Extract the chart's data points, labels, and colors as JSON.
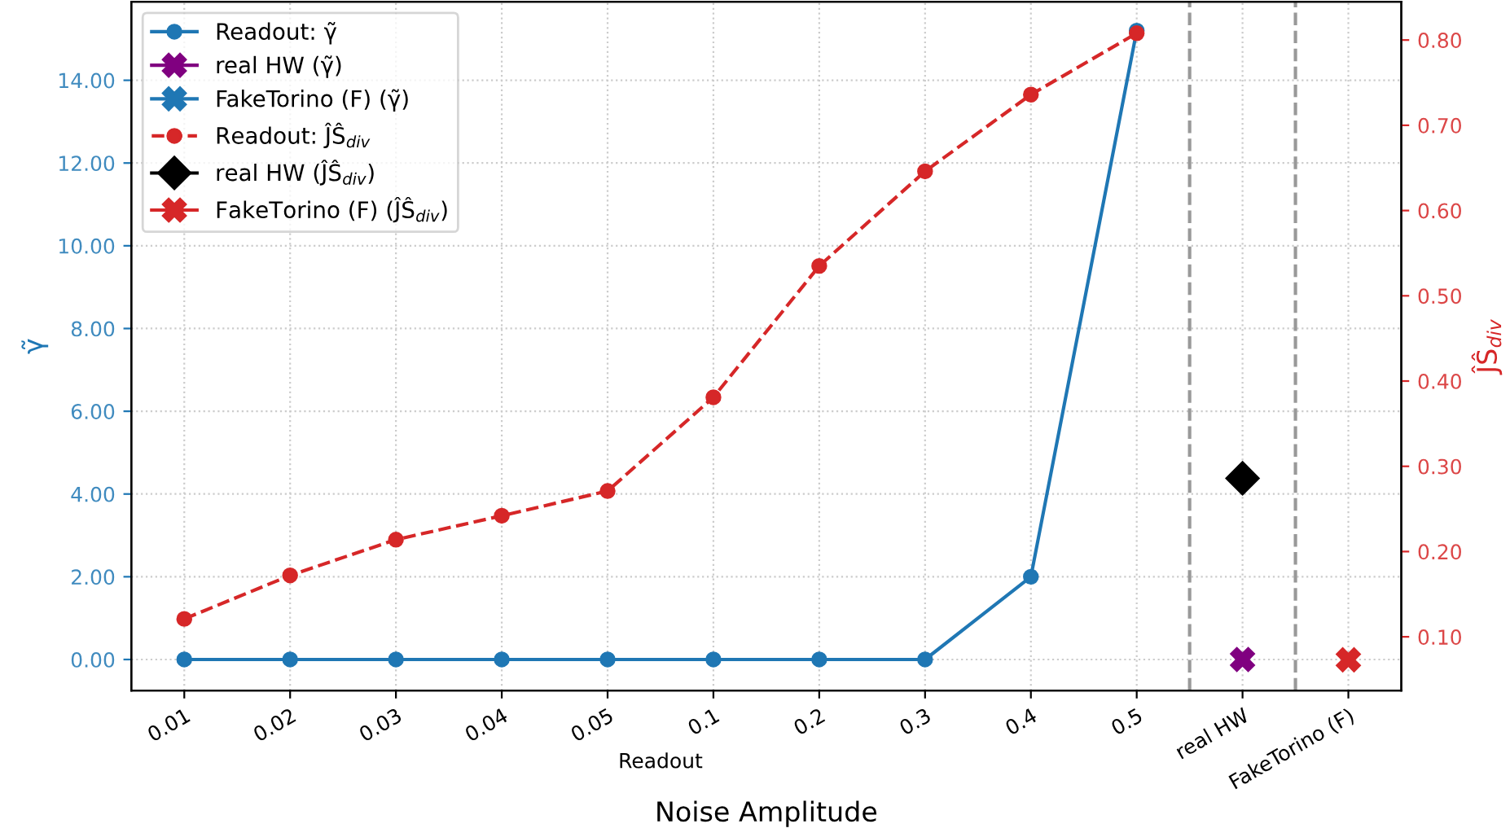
{
  "chart_data": {
    "type": "line",
    "categories": [
      "0.01",
      "0.02",
      "0.03",
      "0.04",
      "0.05",
      "0.1",
      "0.2",
      "0.3",
      "0.4",
      "0.5",
      "real HW",
      "FakeTorino (F)"
    ],
    "xlabel": "Noise Amplitude",
    "ylabel": "γ̃",
    "y2label": "ĴŜ$_{div}$",
    "annotations": [
      "Readout"
    ],
    "ylim": [
      -0.75,
      15.9
    ],
    "yticks": [
      {
        "value": 0,
        "label": "0.00"
      },
      {
        "value": 2,
        "label": "2.00"
      },
      {
        "value": 4,
        "label": "4.00"
      },
      {
        "value": 6,
        "label": "6.00"
      },
      {
        "value": 8,
        "label": "8.00"
      },
      {
        "value": 10,
        "label": "10.00"
      },
      {
        "value": 12,
        "label": "12.00"
      },
      {
        "value": 14,
        "label": "14.00"
      }
    ],
    "y2lim": [
      0.037,
      0.845
    ],
    "y2ticks": [
      {
        "value": 0.1,
        "label": "0.10"
      },
      {
        "value": 0.2,
        "label": "0.20"
      },
      {
        "value": 0.3,
        "label": "0.30"
      },
      {
        "value": 0.4,
        "label": "0.40"
      },
      {
        "value": 0.5,
        "label": "0.50"
      },
      {
        "value": 0.6,
        "label": "0.60"
      },
      {
        "value": 0.7,
        "label": "0.70"
      },
      {
        "value": 0.8,
        "label": "0.80"
      }
    ],
    "grid": true,
    "legend": "top left",
    "series": [
      {
        "name": "Readout: γ̃",
        "color": "#1f77b4",
        "marker": "circle",
        "line_style": "solid",
        "values": [
          0,
          0,
          0,
          0,
          0,
          0,
          0,
          0,
          2.0,
          15.2,
          null,
          null
        ]
      },
      {
        "name": "real HW (γ̃)",
        "type": "scatter",
        "color": "#800080",
        "marker": "cross",
        "values": [
          null,
          null,
          null,
          null,
          null,
          null,
          null,
          null,
          null,
          null,
          0,
          null
        ]
      },
      {
        "name": "FakeTorino (F) (γ̃)",
        "type": "scatter",
        "color": "#1f77b4",
        "marker": "cross",
        "values": [
          null,
          null,
          null,
          null,
          null,
          null,
          null,
          null,
          null,
          null,
          null,
          null
        ]
      },
      {
        "name": "Readout: ĴŜ$_{div}$",
        "axis": "y2",
        "color": "#d62728",
        "marker": "circle",
        "line_style": "dashed",
        "values": [
          0.121,
          0.172,
          0.214,
          0.242,
          0.271,
          0.381,
          0.535,
          0.646,
          0.736,
          0.808,
          null,
          null
        ]
      },
      {
        "name": "real HW (ĴŜ$_{div}$)",
        "type": "scatter",
        "axis": "y2",
        "color": "#000000",
        "marker": "diamond",
        "values": [
          null,
          null,
          null,
          null,
          null,
          null,
          null,
          null,
          null,
          null,
          0.286,
          null
        ]
      },
      {
        "name": "FakeTorino (F) (ĴŜ$_{div}$)",
        "type": "scatter",
        "axis": "y2",
        "color": "#d62728",
        "marker": "cross",
        "values": [
          null,
          null,
          null,
          null,
          null,
          null,
          null,
          null,
          null,
          null,
          null,
          0.073
        ]
      }
    ]
  }
}
